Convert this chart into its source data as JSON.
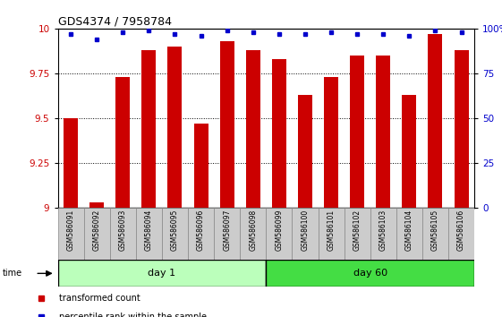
{
  "title": "GDS4374 / 7958784",
  "samples": [
    "GSM586091",
    "GSM586092",
    "GSM586093",
    "GSM586094",
    "GSM586095",
    "GSM586096",
    "GSM586097",
    "GSM586098",
    "GSM586099",
    "GSM586100",
    "GSM586101",
    "GSM586102",
    "GSM586103",
    "GSM586104",
    "GSM586105",
    "GSM586106"
  ],
  "bar_values": [
    9.5,
    9.03,
    9.73,
    9.88,
    9.9,
    9.47,
    9.93,
    9.88,
    9.83,
    9.63,
    9.73,
    9.85,
    9.85,
    9.63,
    9.97,
    9.88
  ],
  "percentile_values": [
    97,
    94,
    98,
    99,
    97,
    96,
    99,
    98,
    97,
    97,
    98,
    97,
    97,
    96,
    99,
    98
  ],
  "bar_color": "#cc0000",
  "percentile_color": "#0000cc",
  "ylim_left": [
    9.0,
    10.0
  ],
  "ylim_right": [
    0,
    100
  ],
  "yticks_left": [
    9.0,
    9.25,
    9.5,
    9.75,
    10.0
  ],
  "ytick_labels_left": [
    "9",
    "9.25",
    "9.5",
    "9.75",
    "10"
  ],
  "yticks_right": [
    0,
    25,
    50,
    75,
    100
  ],
  "ytick_labels_right": [
    "0",
    "25",
    "50",
    "75",
    "100%"
  ],
  "day1_color": "#bbffbb",
  "day60_color": "#44dd44",
  "day1_samples": 8,
  "day60_samples": 8,
  "bar_width": 0.55,
  "background_color": "#ffffff",
  "tick_label_color_left": "#cc0000",
  "tick_label_color_right": "#0000cc",
  "grid_color": "#000000",
  "xlabel_area_color": "#cccccc",
  "label_fontsize": 5.5,
  "axis_fontsize": 7.5
}
